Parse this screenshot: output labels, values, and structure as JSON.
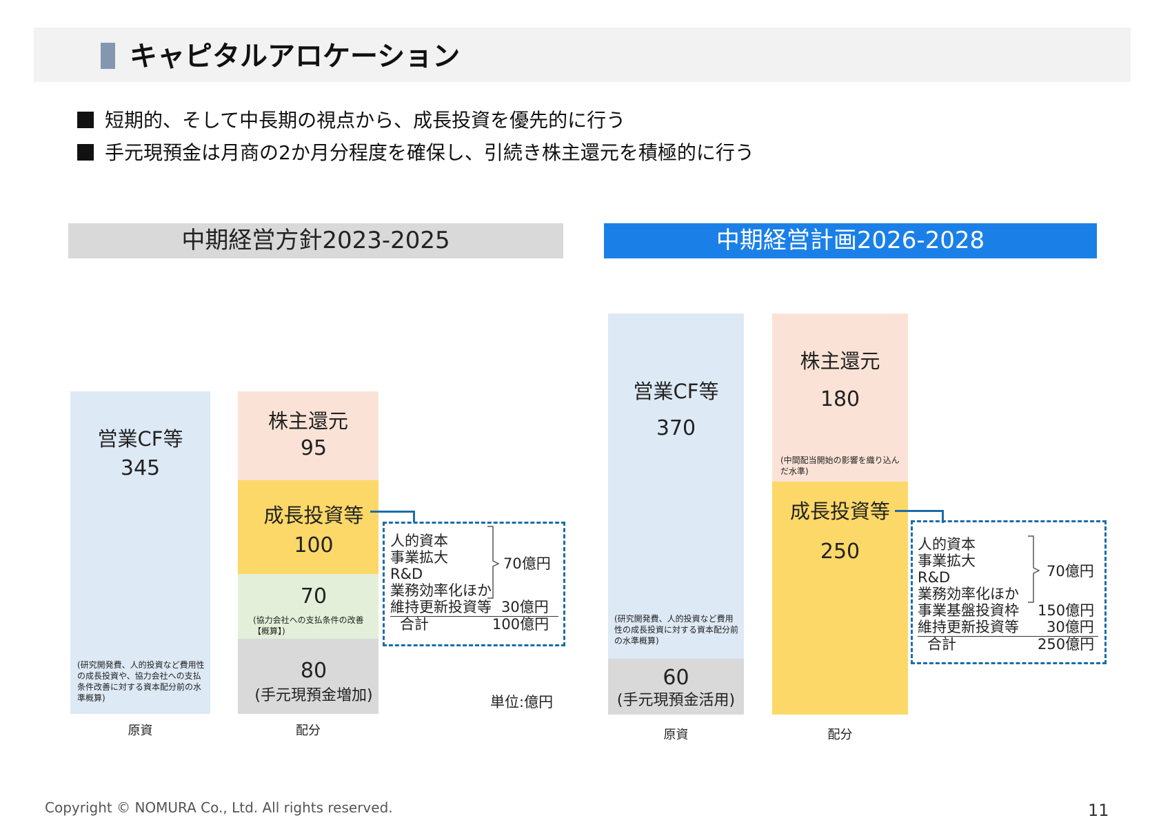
{
  "title": "キャピタルアロケーション",
  "bullets": [
    "短期的、そして中長期の視点から、成長投資を優先的に行う",
    "手元現預金は月商の2か月分程度を確保し、引続き株主還元を積極的に行う"
  ],
  "colors": {
    "source_bar": "#dde9f5",
    "shareholder_return": "#fae3d6",
    "growth_investment": "#fcd868",
    "partner_terms": "#e3efd9",
    "cash": "#d9d9d9",
    "plan_header": "#1a80e8",
    "policy_header": "#d9d9d9",
    "bracket": "#1b6ca8"
  },
  "chart_data": [
    {
      "type": "bar",
      "title": "中期経営方針2023-2025",
      "unit_label": "単位:億円",
      "categories": [
        "原資",
        "配分"
      ],
      "stacks": {
        "原資": [
          {
            "label": "営業CF等",
            "value": 345,
            "note": "(研究開発費、人的投資など費用性の成長投資や、協力会社への支払条件改善に対する資本配分前の水準概算)"
          }
        ],
        "配分": [
          {
            "label": "(手元現預金増加)",
            "value": 80,
            "position": "bottom"
          },
          {
            "label": "",
            "value": 70,
            "note": "(協力会社への支払条件の改善【概算】)"
          },
          {
            "label": "成長投資等",
            "value": 100
          },
          {
            "label": "株主還元",
            "value": 95,
            "position": "top"
          }
        ]
      },
      "growth_breakdown": {
        "grouped_items": [
          "人的資本",
          "事業拡大",
          "R&D",
          "業務効率化ほか"
        ],
        "grouped_amount": "70億円",
        "rows": [
          {
            "label": "維持更新投資等",
            "amount": "30億円"
          }
        ],
        "total_label": "合計",
        "total_amount": "100億円"
      }
    },
    {
      "type": "bar",
      "title": "中期経営計画2026-2028",
      "categories": [
        "原資",
        "配分"
      ],
      "stacks": {
        "原資": [
          {
            "label": "(手元現預金活用)",
            "value": 60,
            "position": "bottom"
          },
          {
            "label": "営業CF等",
            "value": 370,
            "note": "(研究開発費、人的投資など費用性の成長投資に対する資本配分前の水準概算)"
          }
        ],
        "配分": [
          {
            "label": "成長投資等",
            "value": 250
          },
          {
            "label": "株主還元",
            "value": 180,
            "note": "(中間配当開始の影響を織り込んだ水準)",
            "position": "top"
          }
        ]
      },
      "growth_breakdown": {
        "grouped_items": [
          "人的資本",
          "事業拡大",
          "R&D",
          "業務効率化ほか"
        ],
        "grouped_amount": "70億円",
        "rows": [
          {
            "label": "事業基盤投資枠",
            "amount": "150億円"
          },
          {
            "label": "維持更新投資等",
            "amount": "30億円"
          }
        ],
        "total_label": "合計",
        "total_amount": "250億円"
      }
    }
  ],
  "footer": {
    "copyright": "Copyright © NOMURA Co., Ltd. All rights reserved.",
    "page_number": "11"
  }
}
